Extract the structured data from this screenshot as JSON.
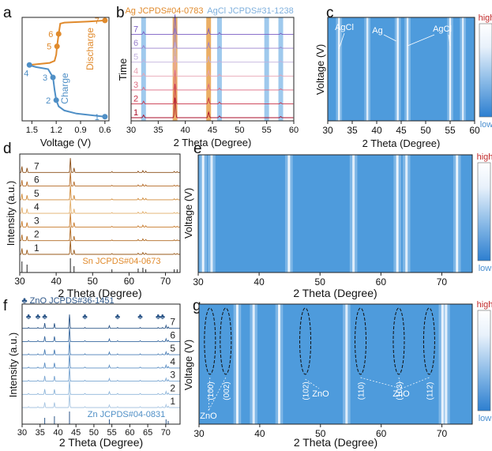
{
  "chart_data": [
    {
      "panel": "a",
      "type": "line",
      "xlabel": "Voltage (V)",
      "x_ticks": [
        "1.5",
        "1.2",
        "0.9",
        "0.6"
      ],
      "xlim": [
        1.62,
        0.55
      ],
      "series": [
        {
          "name": "Charge",
          "color": "#4f8fc6",
          "points": [
            [
              0.6,
              0.04
            ],
            [
              0.95,
              0.07
            ],
            [
              1.1,
              0.1
            ],
            [
              1.17,
              0.14
            ],
            [
              1.2,
              0.2
            ],
            [
              1.22,
              0.3
            ],
            [
              1.24,
              0.42
            ],
            [
              1.3,
              0.5
            ],
            [
              1.45,
              0.52
            ],
            [
              1.54,
              0.54
            ]
          ]
        },
        {
          "name": "Discharge",
          "color": "#e08a2c",
          "points": [
            [
              1.53,
              0.54
            ],
            [
              1.28,
              0.56
            ],
            [
              1.22,
              0.58
            ],
            [
              1.2,
              0.64
            ],
            [
              1.19,
              0.72
            ],
            [
              1.17,
              0.84
            ],
            [
              1.15,
              0.94
            ],
            [
              1.1,
              0.95
            ],
            [
              0.8,
              0.96
            ],
            [
              0.6,
              0.97
            ]
          ]
        }
      ],
      "markers": [
        {
          "label": "1",
          "x": 0.6,
          "y": 0.04,
          "color": "#4f8fc6"
        },
        {
          "label": "2",
          "x": 1.2,
          "y": 0.2,
          "color": "#4f8fc6"
        },
        {
          "label": "3",
          "x": 1.24,
          "y": 0.42,
          "color": "#4f8fc6"
        },
        {
          "label": "4",
          "x": 1.53,
          "y": 0.54,
          "color": "#4f8fc6"
        },
        {
          "label": "5",
          "x": 1.19,
          "y": 0.72,
          "color": "#e08a2c"
        },
        {
          "label": "6",
          "x": 1.17,
          "y": 0.84,
          "color": "#e08a2c"
        },
        {
          "label": "7",
          "x": 0.6,
          "y": 0.97,
          "color": "#e08a2c"
        }
      ]
    },
    {
      "panel": "b",
      "type": "line",
      "xlabel": "2 Theta (Degree)",
      "ylabel": "Time",
      "xlim": [
        30,
        60
      ],
      "x_ticks": [
        30,
        35,
        40,
        45,
        50,
        55,
        60
      ],
      "reference_labels": [
        {
          "text": "Ag JCPDS#04-0783",
          "color": "#e08a2c"
        },
        {
          "text": "AgCl JCPDS#31-1238",
          "color": "#7fb0dd"
        }
      ],
      "highlight_bands": [
        {
          "x": 32.3,
          "color": "#8ec0ea"
        },
        {
          "x": 38.1,
          "color": "#e8a04a"
        },
        {
          "x": 44.3,
          "color": "#e8a04a"
        },
        {
          "x": 46.3,
          "color": "#8ec0ea"
        },
        {
          "x": 55.0,
          "color": "#8ec0ea"
        },
        {
          "x": 57.6,
          "color": "#8ec0ea"
        }
      ],
      "series_labels": [
        "1",
        "2",
        "3",
        "4",
        "5",
        "6",
        "7"
      ],
      "series_colors": [
        "#a80c28",
        "#c83248",
        "#dd6a80",
        "#e8a4b4",
        "#c2b2dd",
        "#9a80cc",
        "#7a5cc2"
      ],
      "peaks": [
        [
          32.3,
          0.12
        ],
        [
          38.1,
          0.9
        ],
        [
          44.3,
          0.25
        ],
        [
          46.3,
          0.08
        ],
        [
          57.6,
          0.05
        ]
      ]
    },
    {
      "panel": "c",
      "type": "heatmap",
      "xlabel": "2 Theta (Degree)",
      "ylabel": "Voltage (V)",
      "xlim": [
        30,
        60
      ],
      "x_ticks": [
        30,
        35,
        40,
        45,
        50,
        55,
        60
      ],
      "colorbar": {
        "high": "high",
        "low": "low"
      },
      "annotations": [
        "AgCl",
        "Ag",
        "AgCl"
      ],
      "lines": [
        32.3,
        38.1,
        44.3,
        46.3,
        55.0,
        57.6
      ]
    },
    {
      "panel": "d",
      "type": "line",
      "xlabel": "2 Theta (Degree)",
      "ylabel": "Intensity (a.u.)",
      "xlim": [
        30,
        74
      ],
      "x_ticks": [
        30,
        40,
        50,
        60,
        70
      ],
      "reference_label": "Sn JCPDS#04-0673",
      "series_labels": [
        "1",
        "2",
        "3",
        "4",
        "5",
        "6",
        "7"
      ],
      "series_colors": [
        "#9a5a1a",
        "#b06a22",
        "#c87a2a",
        "#e2ae6a",
        "#d08a38",
        "#b56a25",
        "#8a4c14"
      ],
      "peaks": [
        [
          30.6,
          0.4
        ],
        [
          32.0,
          0.3
        ],
        [
          43.9,
          0.95
        ],
        [
          44.9,
          0.3
        ],
        [
          55.3,
          0.05
        ],
        [
          62.5,
          0.08
        ],
        [
          63.8,
          0.12
        ],
        [
          64.6,
          0.08
        ],
        [
          72.4,
          0.06
        ],
        [
          73.2,
          0.05
        ]
      ],
      "reference_sticks": [
        30.6,
        32.0,
        43.9,
        44.9,
        55.3,
        62.5,
        63.8,
        64.6,
        72.4,
        73.2
      ]
    },
    {
      "panel": "e",
      "type": "heatmap",
      "xlabel": "2 Theta (Degree)",
      "ylabel": "Voltage (V)",
      "xlim": [
        30,
        75
      ],
      "x_ticks": [
        30,
        40,
        50,
        60,
        70
      ],
      "colorbar": {
        "high": "high",
        "low": "low"
      },
      "lines": [
        30.8,
        32.2,
        44.9,
        55.5,
        62.7,
        64.2,
        72.5
      ]
    },
    {
      "panel": "f",
      "type": "line",
      "xlabel": "2 Theta (Degree)",
      "ylabel": "Intensity (a.u.)",
      "xlim": [
        30,
        74
      ],
      "x_ticks": [
        30,
        35,
        40,
        45,
        50,
        55,
        60,
        65,
        70
      ],
      "reference_labels": [
        "♣ ZnO JCPDS#36-1451",
        "Zn JCPDS#04-0831"
      ],
      "series_labels": [
        "1",
        "2",
        "3",
        "4",
        "5",
        "6",
        "7"
      ],
      "series_colors": [
        "#a8c6e2",
        "#8fb6da",
        "#7aa6d2",
        "#5e90c4",
        "#4b7fb6",
        "#3a6aa0",
        "#2c5688"
      ],
      "peaks": [
        [
          36.3,
          0.3
        ],
        [
          39.0,
          0.35
        ],
        [
          43.2,
          0.95
        ],
        [
          54.3,
          0.18
        ],
        [
          70.1,
          0.2
        ],
        [
          70.7,
          0.1
        ]
      ],
      "reference_sticks": [
        36.3,
        39.0,
        43.2,
        54.3,
        70.1,
        70.7
      ],
      "zno_markers": [
        31.8,
        34.4,
        36.3,
        47.5,
        56.6,
        62.9,
        67.9,
        69.1
      ]
    },
    {
      "panel": "g",
      "type": "heatmap",
      "xlabel": "2 Theta (Degree)",
      "ylabel": "Voltage (V)",
      "xlim": [
        30,
        75
      ],
      "x_ticks": [
        30,
        40,
        50,
        60,
        70
      ],
      "colorbar": {
        "high": "high",
        "low": "low"
      },
      "lines": [
        36.3,
        39.0,
        43.2,
        54.3,
        70.1,
        70.7
      ],
      "zno_ellipses": [
        {
          "x": 31.8,
          "label": "(100)"
        },
        {
          "x": 34.4,
          "label": "(002)"
        },
        {
          "x": 47.5,
          "label": "(102)"
        },
        {
          "x": 56.6,
          "label": "(110)"
        },
        {
          "x": 62.9,
          "label": "(103)"
        },
        {
          "x": 67.9,
          "label": "(112)"
        }
      ],
      "zno_labels": [
        "ZnO",
        "ZnO",
        "ZnO"
      ]
    }
  ],
  "panel_letters": [
    "a",
    "b",
    "c",
    "d",
    "e",
    "f",
    "g"
  ],
  "texts": {
    "a_discharge": "Discharge",
    "a_charge": "Charge",
    "c_agcl1": "AgCl",
    "c_ag": "Ag",
    "c_agcl2": "AgCl",
    "g_zno1": "ZnO",
    "g_zno2": "ZnO",
    "g_zno3": "ZnO"
  }
}
